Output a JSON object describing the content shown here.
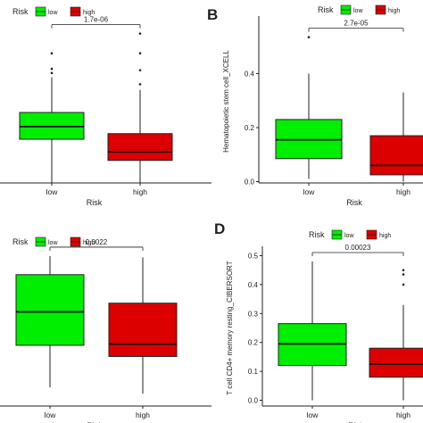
{
  "legend_title": "Risk",
  "colors": {
    "low": "#00ee00",
    "high": "#dd0000",
    "axis": "#222222"
  },
  "chart_data": [
    {
      "panel_letter": "",
      "type": "box",
      "categories": [
        "low",
        "high"
      ],
      "xlabel": "Risk",
      "ylabel": "",
      "ylim": [
        0,
        0.57
      ],
      "yticks": [],
      "pvalue": "1.7e-06",
      "legend": [
        "low",
        "high"
      ],
      "boxes": [
        {
          "name": "low",
          "q1": 0.155,
          "median": 0.2,
          "q3": 0.25,
          "whisker_low": 0.0,
          "whisker_high": 0.375,
          "outliers": [
            0.46,
            0.405,
            0.39
          ]
        },
        {
          "name": "high",
          "q1": 0.08,
          "median": 0.11,
          "q3": 0.175,
          "whisker_low": 0.0,
          "whisker_high": 0.33,
          "outliers": [
            0.53,
            0.46,
            0.4,
            0.35
          ]
        }
      ]
    },
    {
      "panel_letter": "B",
      "type": "box",
      "categories": [
        "low",
        "high"
      ],
      "xlabel": "Risk",
      "ylabel": "Hematopoietic stem cell_XCELL",
      "ylim": [
        -0.005,
        0.6
      ],
      "yticks": [
        0.0,
        0.2,
        0.4
      ],
      "ytick_labels": [
        "0.0",
        "0.2",
        "0.4"
      ],
      "pvalue": "2.7e-05",
      "legend": [
        "low",
        "high"
      ],
      "boxes": [
        {
          "name": "low",
          "q1": 0.085,
          "median": 0.155,
          "q3": 0.23,
          "whisker_low": 0.01,
          "whisker_high": 0.4,
          "outliers": [
            0.535
          ]
        },
        {
          "name": "high",
          "q1": 0.025,
          "median": 0.06,
          "q3": 0.17,
          "whisker_low": 0.0,
          "whisker_high": 0.33,
          "outliers": []
        }
      ]
    },
    {
      "panel_letter": "",
      "type": "box",
      "categories": [
        "low",
        "high"
      ],
      "xlabel": "Risk",
      "ylabel": "",
      "ylim": [
        0,
        0.72
      ],
      "yticks": [],
      "pvalue": "0.0022",
      "legend": [
        "low",
        "high"
      ],
      "boxes": [
        {
          "name": "low",
          "q1": 0.245,
          "median": 0.38,
          "q3": 0.53,
          "whisker_low": 0.075,
          "whisker_high": 0.605,
          "outliers": []
        },
        {
          "name": "high",
          "q1": 0.2,
          "median": 0.25,
          "q3": 0.415,
          "whisker_low": 0.05,
          "whisker_high": 0.6,
          "outliers": []
        }
      ]
    },
    {
      "panel_letter": "D",
      "type": "box",
      "categories": [
        "low",
        "high"
      ],
      "xlabel": "Risk",
      "ylabel": "T cell CD4+ memory resting_CIBERSORT",
      "ylim": [
        -0.02,
        0.52
      ],
      "yticks": [
        0.0,
        0.1,
        0.2,
        0.3,
        0.4,
        0.5
      ],
      "ytick_labels": [
        "0.0",
        "0.1",
        "0.2",
        "0.3",
        "0.4",
        "0.5"
      ],
      "pvalue": "0.00023",
      "legend": [
        "low",
        "high"
      ],
      "boxes": [
        {
          "name": "low",
          "q1": 0.12,
          "median": 0.195,
          "q3": 0.265,
          "whisker_low": 0.0,
          "whisker_high": 0.48,
          "outliers": []
        },
        {
          "name": "high",
          "q1": 0.08,
          "median": 0.125,
          "q3": 0.18,
          "whisker_low": 0.0,
          "whisker_high": 0.33,
          "outliers": [
            0.45,
            0.435,
            0.4
          ]
        }
      ]
    }
  ]
}
